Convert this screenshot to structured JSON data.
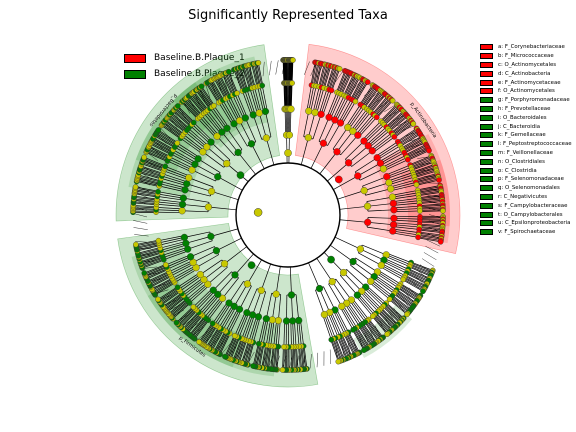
{
  "title": "Significantly Represented Taxa",
  "legend": [
    {
      "label": "Baseline.B.Plaque_1",
      "color": "#ff0000"
    },
    {
      "label": "Baseline.B.Plaque_2",
      "color": "#008000"
    }
  ],
  "colors": {
    "enriched_1": "#ff0000",
    "enriched_2": "#008000",
    "not_significant": "#c8c800"
  },
  "chart_data": {
    "type": "cladogram",
    "title": "Significantly Represented Taxa",
    "series": [
      {
        "name": "Baseline.B.Plaque_1",
        "color": "#ff0000"
      },
      {
        "name": "Baseline.B.Plaque_2",
        "color": "#008000"
      }
    ],
    "taxa": [
      {
        "key": "a",
        "name": "F_Corynebacteriaceae",
        "group": "Baseline.B.Plaque_1"
      },
      {
        "key": "b",
        "name": "F_Micrococcaceae",
        "group": "Baseline.B.Plaque_1"
      },
      {
        "key": "c",
        "name": "O_Actinomycetales",
        "group": "Baseline.B.Plaque_1"
      },
      {
        "key": "d",
        "name": "C_Actinobacteria",
        "group": "Baseline.B.Plaque_1"
      },
      {
        "key": "e",
        "name": "F_Actinomycetaceae",
        "group": "Baseline.B.Plaque_1"
      },
      {
        "key": "f",
        "name": "O_Actinomycetales",
        "group": "Baseline.B.Plaque_1"
      },
      {
        "key": "g",
        "name": "F_Porphyromonadaceae",
        "group": "Baseline.B.Plaque_2"
      },
      {
        "key": "h",
        "name": "F_Prevotellaceae",
        "group": "Baseline.B.Plaque_2"
      },
      {
        "key": "i",
        "name": "O_Bacteroidales",
        "group": "Baseline.B.Plaque_2"
      },
      {
        "key": "j",
        "name": "C_Bacteroidia",
        "group": "Baseline.B.Plaque_2"
      },
      {
        "key": "k",
        "name": "F_Gemellaceae",
        "group": "Baseline.B.Plaque_2"
      },
      {
        "key": "l",
        "name": "F_Peptostreptococcaceae",
        "group": "Baseline.B.Plaque_2"
      },
      {
        "key": "m",
        "name": "F_Veillonellaceae",
        "group": "Baseline.B.Plaque_2"
      },
      {
        "key": "n",
        "name": "O_Clostridiales",
        "group": "Baseline.B.Plaque_2"
      },
      {
        "key": "o",
        "name": "C_Clostridia",
        "group": "Baseline.B.Plaque_2"
      },
      {
        "key": "p",
        "name": "F_Selenomonadaceae",
        "group": "Baseline.B.Plaque_2"
      },
      {
        "key": "q",
        "name": "O_Selenomonadales",
        "group": "Baseline.B.Plaque_2"
      },
      {
        "key": "r",
        "name": "C_Negativicutes",
        "group": "Baseline.B.Plaque_2"
      },
      {
        "key": "s",
        "name": "F_Campylobacteraceae",
        "group": "Baseline.B.Plaque_2"
      },
      {
        "key": "t",
        "name": "O_Campylobacterales",
        "group": "Baseline.B.Plaque_2"
      },
      {
        "key": "u",
        "name": "C_Epsilonproteobacteria",
        "group": "Baseline.B.Plaque_2"
      },
      {
        "key": "v",
        "name": "F_Spirochaetaceae",
        "group": "Baseline.B.Plaque_2"
      }
    ],
    "clade_labels": [
      "p_Actinobacteria",
      "p_Bacteroidetes",
      "p_Firmicutes"
    ]
  }
}
